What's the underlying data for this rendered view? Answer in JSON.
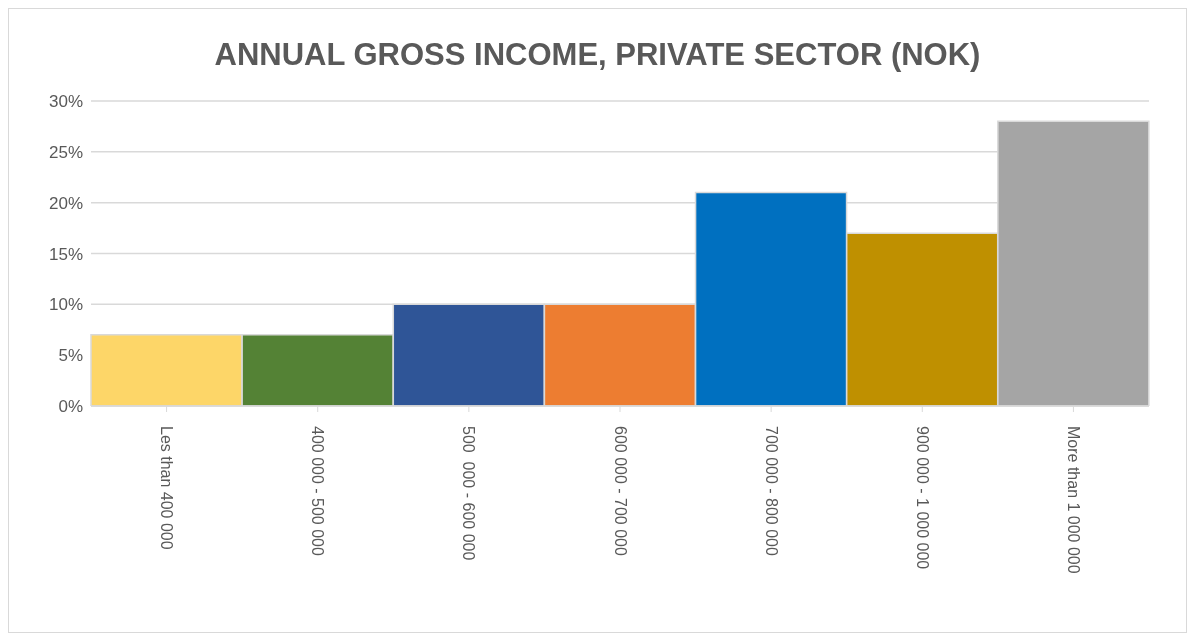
{
  "chart_data": {
    "type": "bar",
    "title": "ANNUAL GROSS INCOME, PRIVATE SECTOR (NOK)",
    "categories": [
      "Les than 400 000",
      "400 000 - 500 000",
      "500  000 - 600 000",
      "600 000 - 700 000",
      "700 000 - 800 000",
      "900 000 - 1 000 000",
      "More than 1 000 000"
    ],
    "values": [
      7,
      7,
      10,
      10,
      21,
      17,
      28
    ],
    "colors": [
      "#fdd668",
      "#548235",
      "#2f5597",
      "#ed7d31",
      "#0070c0",
      "#bf9000",
      "#a5a5a5"
    ],
    "ylim": [
      0,
      30
    ],
    "yticks": [
      {
        "value": 0,
        "label": "0%"
      },
      {
        "value": 5,
        "label": "5%"
      },
      {
        "value": 10,
        "label": "10%"
      },
      {
        "value": 15,
        "label": "15%"
      },
      {
        "value": 20,
        "label": "20%"
      },
      {
        "value": 25,
        "label": "25%"
      },
      {
        "value": 30,
        "label": "30%"
      }
    ],
    "grid": "y"
  }
}
